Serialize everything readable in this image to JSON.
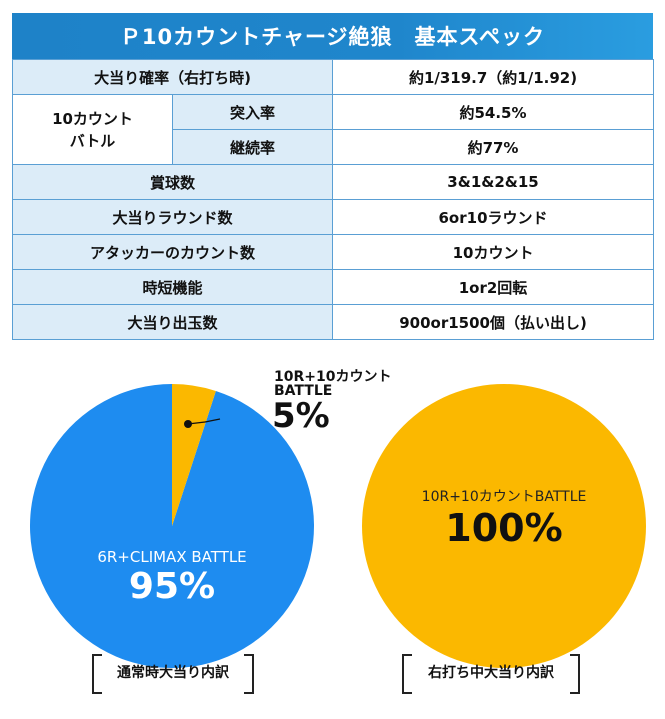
{
  "header": {
    "title": "Ｐ10カウントチャージ絶狼　基本スペック"
  },
  "spec": {
    "jackpot_prob": {
      "label": "大当り確率（右打ち時)",
      "value": "約1/319.7（約1/1.92)"
    },
    "count_battle": {
      "label_line1": "10カウント",
      "label_line2": "バトル",
      "entry": {
        "label": "突入率",
        "value": "約54.5%"
      },
      "continue": {
        "label": "継続率",
        "value": "約77%"
      }
    },
    "prize_balls": {
      "label": "賞球数",
      "value": "3&1&2&15"
    },
    "rounds": {
      "label": "大当りラウンド数",
      "value": "6or10ラウンド"
    },
    "attacker_count": {
      "label": "アタッカーのカウント数",
      "value": "10カウント"
    },
    "time_short": {
      "label": "時短機能",
      "value": "1or2回転"
    },
    "payout": {
      "label": "大当り出玉数",
      "value": "900or1500個（払い出し)"
    }
  },
  "chart_data": [
    {
      "type": "pie",
      "title": "通常時大当り内訳",
      "slices": [
        {
          "name": "10R+10カウントBATTLE",
          "name_line1": "10R+10カウント",
          "name_line2": "BATTLE",
          "value": 5,
          "label": "5%",
          "color": "#fbb800"
        },
        {
          "name": "6R+CLIMAX BATTLE",
          "value": 95,
          "label": "95%",
          "color": "#1e8cf0"
        }
      ]
    },
    {
      "type": "pie",
      "title": "右打ち中大当り内訳",
      "slices": [
        {
          "name": "10R+10カウントBATTLE",
          "value": 100,
          "label": "100%",
          "color": "#fbb800"
        }
      ]
    }
  ]
}
